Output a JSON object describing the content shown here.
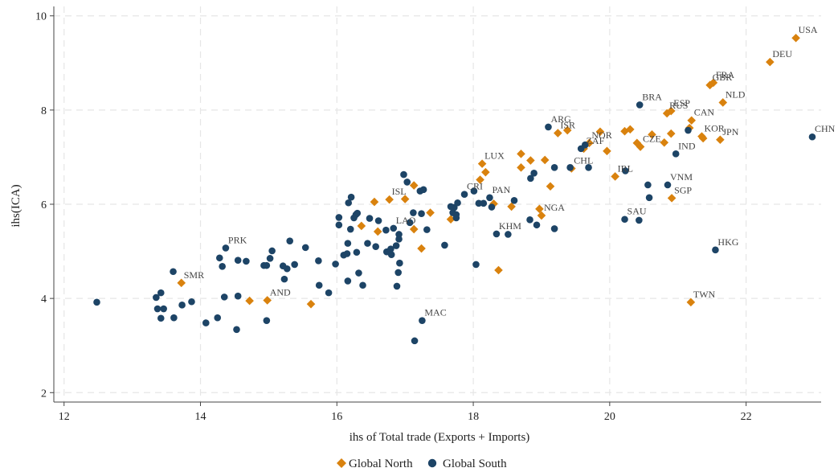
{
  "chart_data": {
    "type": "scatter",
    "xlabel": "ihs of Total trade (Exports + Imports)",
    "ylabel": "ihs(ICA)",
    "xlim": [
      11.85,
      23.1
    ],
    "ylim": [
      1.8,
      10.2
    ],
    "xticks": [
      12,
      14,
      16,
      18,
      20,
      22
    ],
    "yticks": [
      2,
      4,
      6,
      8,
      10
    ],
    "grid": true,
    "legend_position": "bottom",
    "series": [
      {
        "name": "Global North",
        "color": "#d9820e",
        "marker": "diamond",
        "points": [
          [
            22.73,
            9.53
          ],
          [
            22.35,
            9.02
          ],
          [
            21.66,
            8.16
          ],
          [
            21.52,
            8.58
          ],
          [
            21.47,
            8.53
          ],
          [
            21.2,
            7.78
          ],
          [
            21.17,
            7.62
          ],
          [
            21.35,
            7.44
          ],
          [
            21.37,
            7.4
          ],
          [
            21.62,
            7.37
          ],
          [
            20.9,
            7.98
          ],
          [
            20.84,
            7.93
          ],
          [
            20.8,
            7.31
          ],
          [
            20.9,
            7.5
          ],
          [
            20.62,
            7.48
          ],
          [
            20.4,
            7.3
          ],
          [
            20.45,
            7.22
          ],
          [
            20.3,
            7.59
          ],
          [
            20.22,
            7.55
          ],
          [
            19.96,
            7.13
          ],
          [
            19.86,
            7.54
          ],
          [
            19.7,
            7.3
          ],
          [
            19.62,
            7.18
          ],
          [
            19.38,
            7.57
          ],
          [
            19.24,
            7.51
          ],
          [
            20.08,
            6.59
          ],
          [
            19.44,
            6.76
          ],
          [
            19.13,
            6.38
          ],
          [
            19.05,
            6.94
          ],
          [
            18.84,
            6.93
          ],
          [
            18.7,
            7.07
          ],
          [
            18.7,
            6.78
          ],
          [
            18.13,
            6.86
          ],
          [
            18.18,
            6.68
          ],
          [
            18.1,
            6.52
          ],
          [
            18.3,
            6.01
          ],
          [
            18.56,
            5.95
          ],
          [
            18.97,
            5.9
          ],
          [
            19.0,
            5.76
          ],
          [
            18.37,
            4.6
          ],
          [
            20.91,
            6.13
          ],
          [
            21.19,
            3.92
          ],
          [
            17.67,
            5.68
          ],
          [
            17.37,
            5.82
          ],
          [
            17.24,
            5.06
          ],
          [
            17.13,
            6.4
          ],
          [
            17.13,
            5.47
          ],
          [
            17.0,
            6.11
          ],
          [
            16.77,
            6.1
          ],
          [
            16.55,
            6.05
          ],
          [
            16.36,
            5.54
          ],
          [
            16.6,
            5.42
          ],
          [
            15.62,
            3.88
          ],
          [
            14.98,
            3.96
          ],
          [
            14.72,
            3.95
          ],
          [
            13.72,
            4.33
          ]
        ]
      },
      {
        "name": "Global South",
        "color": "#1d4466",
        "marker": "circle",
        "points": [
          [
            22.97,
            7.43
          ],
          [
            21.15,
            7.57
          ],
          [
            20.97,
            7.07
          ],
          [
            21.55,
            5.03
          ],
          [
            20.44,
            8.11
          ],
          [
            20.23,
            6.71
          ],
          [
            20.56,
            6.41
          ],
          [
            20.85,
            6.41
          ],
          [
            20.58,
            6.14
          ],
          [
            20.22,
            5.68
          ],
          [
            20.43,
            5.66
          ],
          [
            19.1,
            7.64
          ],
          [
            19.58,
            7.18
          ],
          [
            19.64,
            7.26
          ],
          [
            19.42,
            6.78
          ],
          [
            19.69,
            6.78
          ],
          [
            19.19,
            6.78
          ],
          [
            18.89,
            6.66
          ],
          [
            18.84,
            6.55
          ],
          [
            18.6,
            6.08
          ],
          [
            18.51,
            5.36
          ],
          [
            18.34,
            5.37
          ],
          [
            18.24,
            6.14
          ],
          [
            18.27,
            5.94
          ],
          [
            18.01,
            6.28
          ],
          [
            17.87,
            6.21
          ],
          [
            17.77,
            6.03
          ],
          [
            17.75,
            5.78
          ],
          [
            17.75,
            5.71
          ],
          [
            17.7,
            5.82
          ],
          [
            17.72,
            5.93
          ],
          [
            17.67,
            5.95
          ],
          [
            17.58,
            5.13
          ],
          [
            18.08,
            6.02
          ],
          [
            18.15,
            6.02
          ],
          [
            18.04,
            4.72
          ],
          [
            18.83,
            5.67
          ],
          [
            18.93,
            5.56
          ],
          [
            19.19,
            5.48
          ],
          [
            17.25,
            3.53
          ],
          [
            17.14,
            3.1
          ],
          [
            17.03,
            6.47
          ],
          [
            16.98,
            6.63
          ],
          [
            17.22,
            6.28
          ],
          [
            17.27,
            6.31
          ],
          [
            17.12,
            5.82
          ],
          [
            17.24,
            5.8
          ],
          [
            17.32,
            5.46
          ],
          [
            17.07,
            5.61
          ],
          [
            16.91,
            5.36
          ],
          [
            16.91,
            5.26
          ],
          [
            16.87,
            5.12
          ],
          [
            16.79,
            5.05
          ],
          [
            16.8,
            4.93
          ],
          [
            16.73,
            4.99
          ],
          [
            16.72,
            5.45
          ],
          [
            16.83,
            5.49
          ],
          [
            16.92,
            4.75
          ],
          [
            16.9,
            4.55
          ],
          [
            16.88,
            4.26
          ],
          [
            16.45,
            5.17
          ],
          [
            16.48,
            5.7
          ],
          [
            16.57,
            5.1
          ],
          [
            16.61,
            5.65
          ],
          [
            16.3,
            5.81
          ],
          [
            16.28,
            5.78
          ],
          [
            16.25,
            5.71
          ],
          [
            16.2,
            5.47
          ],
          [
            16.21,
            6.15
          ],
          [
            16.17,
            6.03
          ],
          [
            16.03,
            5.56
          ],
          [
            16.03,
            5.72
          ],
          [
            16.16,
            5.17
          ],
          [
            16.15,
            4.95
          ],
          [
            16.1,
            4.92
          ],
          [
            16.29,
            4.98
          ],
          [
            16.32,
            4.54
          ],
          [
            16.16,
            4.37
          ],
          [
            16.38,
            4.28
          ],
          [
            15.98,
            4.73
          ],
          [
            15.73,
            4.8
          ],
          [
            15.74,
            4.28
          ],
          [
            15.88,
            4.12
          ],
          [
            15.54,
            5.08
          ],
          [
            15.38,
            4.72
          ],
          [
            15.31,
            5.22
          ],
          [
            15.27,
            4.63
          ],
          [
            15.23,
            4.41
          ],
          [
            15.21,
            4.69
          ],
          [
            14.97,
            4.7
          ],
          [
            15.05,
            5.01
          ],
          [
            15.02,
            4.85
          ],
          [
            14.93,
            4.7
          ],
          [
            14.97,
            3.53
          ],
          [
            14.67,
            4.79
          ],
          [
            14.55,
            4.81
          ],
          [
            14.37,
            5.07
          ],
          [
            14.28,
            4.86
          ],
          [
            14.32,
            4.68
          ],
          [
            14.55,
            4.05
          ],
          [
            14.35,
            4.03
          ],
          [
            14.25,
            3.59
          ],
          [
            14.08,
            3.48
          ],
          [
            14.53,
            3.34
          ],
          [
            13.87,
            3.93
          ],
          [
            13.73,
            3.86
          ],
          [
            13.6,
            4.57
          ],
          [
            13.61,
            3.59
          ],
          [
            13.42,
            4.12
          ],
          [
            13.35,
            4.02
          ],
          [
            13.46,
            3.78
          ],
          [
            13.37,
            3.78
          ],
          [
            13.42,
            3.58
          ],
          [
            12.48,
            3.92
          ]
        ]
      }
    ],
    "annotations": [
      {
        "text": "USA",
        "x": 22.73,
        "y": 9.53
      },
      {
        "text": "DEU",
        "x": 22.35,
        "y": 9.02
      },
      {
        "text": "FRA",
        "x": 21.52,
        "y": 8.58
      },
      {
        "text": "GBR",
        "x": 21.47,
        "y": 8.53
      },
      {
        "text": "NLD",
        "x": 21.66,
        "y": 8.16
      },
      {
        "text": "ESP",
        "x": 20.9,
        "y": 7.98
      },
      {
        "text": "RUS",
        "x": 20.84,
        "y": 7.93
      },
      {
        "text": "CAN",
        "x": 21.2,
        "y": 7.78
      },
      {
        "text": "KOR",
        "x": 21.35,
        "y": 7.44
      },
      {
        "text": "JPN",
        "x": 21.62,
        "y": 7.37
      },
      {
        "text": "BRA",
        "x": 20.44,
        "y": 8.11
      },
      {
        "text": "CZE",
        "x": 20.45,
        "y": 7.22
      },
      {
        "text": "IND",
        "x": 20.97,
        "y": 7.07
      },
      {
        "text": "CHN",
        "x": 22.97,
        "y": 7.43
      },
      {
        "text": "ARG",
        "x": 19.1,
        "y": 7.64
      },
      {
        "text": "ISR",
        "x": 19.24,
        "y": 7.51
      },
      {
        "text": "NOR",
        "x": 19.7,
        "y": 7.3
      },
      {
        "text": "ZAF",
        "x": 19.62,
        "y": 7.18
      },
      {
        "text": "CHL",
        "x": 19.44,
        "y": 6.76
      },
      {
        "text": "IRL",
        "x": 20.08,
        "y": 6.59
      },
      {
        "text": "VNM",
        "x": 20.85,
        "y": 6.41
      },
      {
        "text": "SGP",
        "x": 20.91,
        "y": 6.13
      },
      {
        "text": "SAU",
        "x": 20.22,
        "y": 5.68
      },
      {
        "text": "HKG",
        "x": 21.55,
        "y": 5.03
      },
      {
        "text": "TWN",
        "x": 21.19,
        "y": 3.92
      },
      {
        "text": "LUX",
        "x": 18.13,
        "y": 6.86
      },
      {
        "text": "PAN",
        "x": 18.24,
        "y": 6.14
      },
      {
        "text": "CRI",
        "x": 17.87,
        "y": 6.21
      },
      {
        "text": "NGA",
        "x": 19.0,
        "y": 5.76
      },
      {
        "text": "KHM",
        "x": 18.34,
        "y": 5.37
      },
      {
        "text": "ISL",
        "x": 16.77,
        "y": 6.1
      },
      {
        "text": "LAO",
        "x": 16.83,
        "y": 5.49
      },
      {
        "text": "MAC",
        "x": 17.25,
        "y": 3.53
      },
      {
        "text": "PRK",
        "x": 14.37,
        "y": 5.07
      },
      {
        "text": "SMR",
        "x": 13.72,
        "y": 4.33
      },
      {
        "text": "AND",
        "x": 14.98,
        "y": 3.96
      }
    ]
  }
}
